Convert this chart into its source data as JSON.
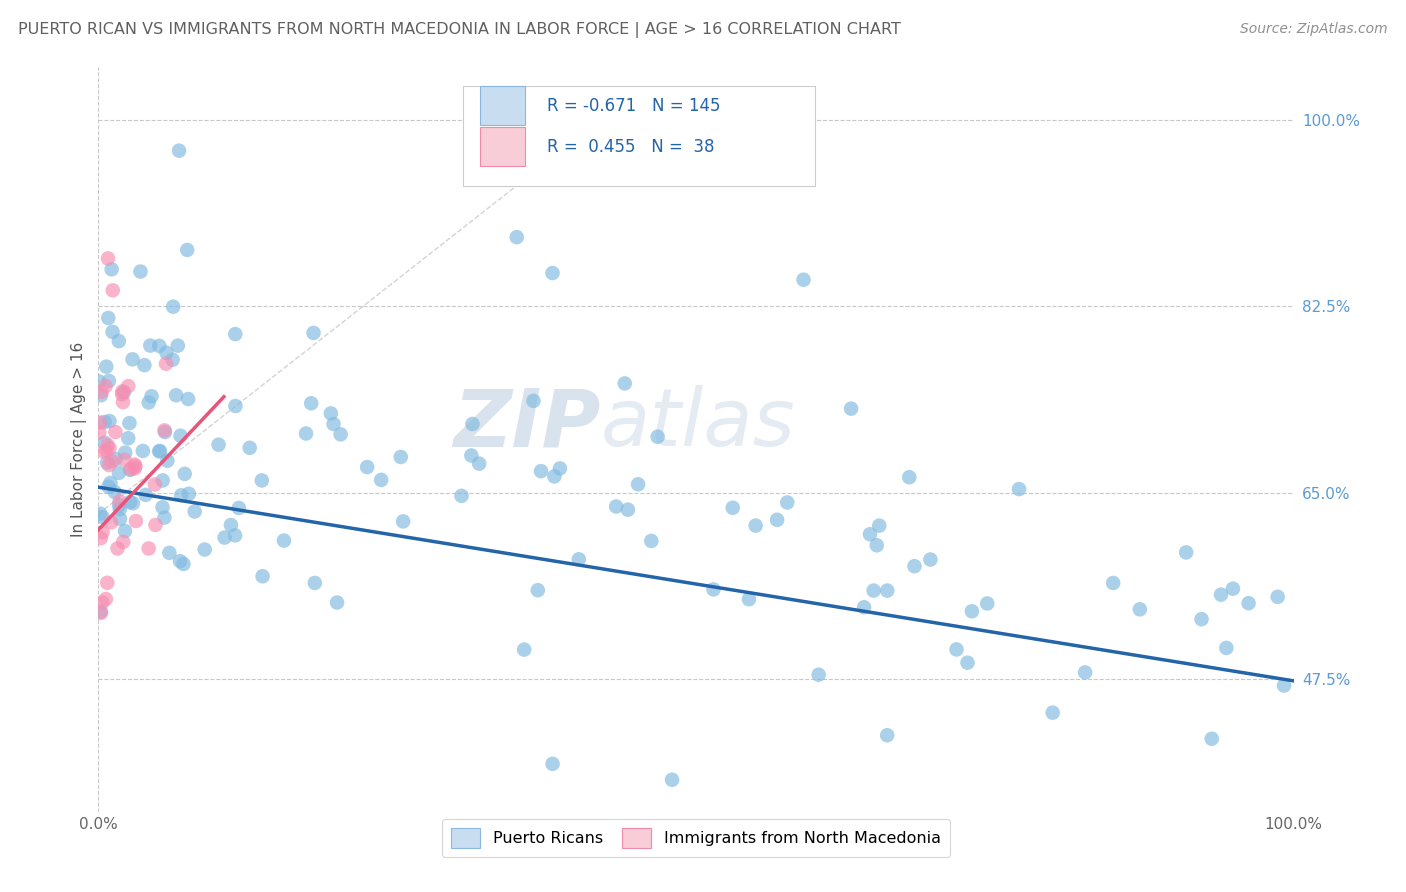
{
  "title": "PUERTO RICAN VS IMMIGRANTS FROM NORTH MACEDONIA IN LABOR FORCE | AGE > 16 CORRELATION CHART",
  "source_text": "Source: ZipAtlas.com",
  "ylabel": "In Labor Force | Age > 16",
  "xlim": [
    0.0,
    1.0
  ],
  "ylim": [
    0.35,
    1.05
  ],
  "x_tick_labels": [
    "0.0%",
    "100.0%"
  ],
  "y_tick_labels": [
    "47.5%",
    "65.0%",
    "82.5%",
    "100.0%"
  ],
  "y_tick_vals": [
    0.475,
    0.65,
    0.825,
    1.0
  ],
  "watermark_zip": "ZIP",
  "watermark_atlas": "atlas",
  "blue_color": "#7fb9e0",
  "blue_edge": "#7fb9e0",
  "pink_color": "#f78db0",
  "pink_edge": "#f78db0",
  "line_blue": "#2464a8",
  "line_pink": "#e8547a",
  "line_dash": "#c8c8c8",
  "background": "#ffffff",
  "grid_color": "#c8c8c8",
  "title_color": "#606060",
  "source_color": "#909090",
  "right_tick_color": "#5b9bd5",
  "legend_text_color": "#2464a8",
  "blue_box_fill": "#c9ddf0",
  "blue_box_edge": "#8ab8de",
  "pink_box_fill": "#f9cdd8",
  "pink_box_edge": "#f08aaa",
  "blue_line_y0": 0.655,
  "blue_line_y1": 0.473,
  "pink_line_x0": 0.0,
  "pink_line_x1": 0.105,
  "pink_line_y0": 0.615,
  "pink_line_y1": 0.74
}
